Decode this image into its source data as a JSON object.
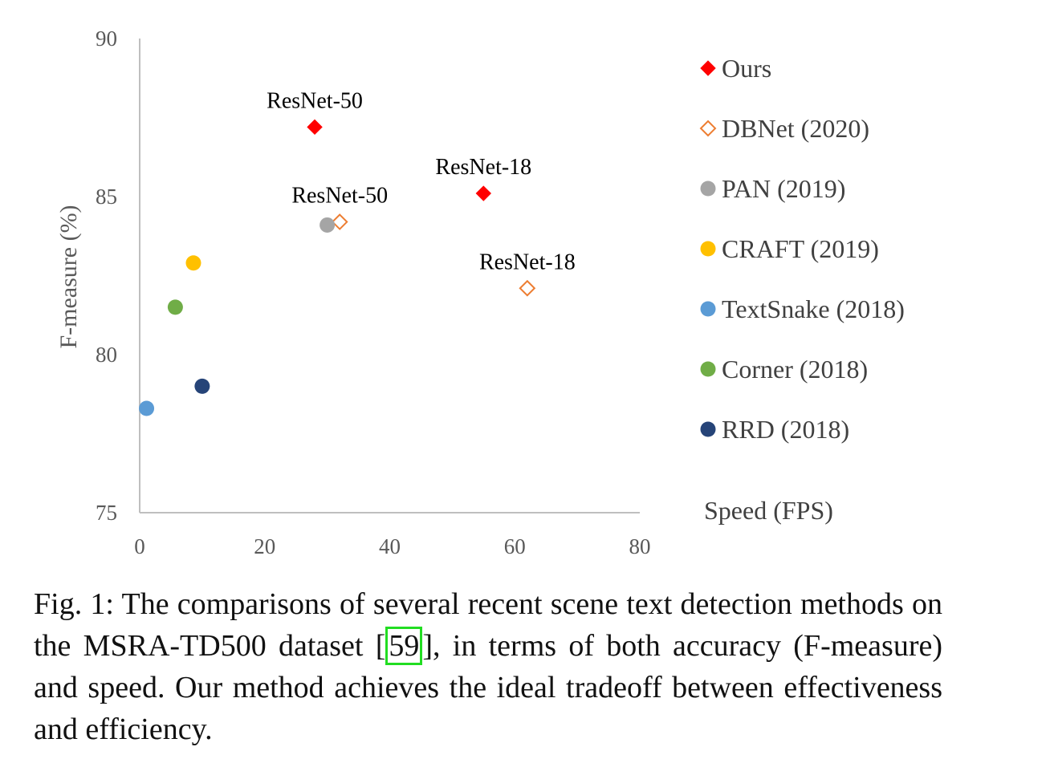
{
  "chart_data": {
    "type": "scatter",
    "xlabel": "Speed (FPS)",
    "ylabel": "F-measure (%)",
    "xlim": [
      0,
      80
    ],
    "ylim": [
      75,
      90
    ],
    "xticks": [
      "0",
      "20",
      "40",
      "60",
      "80"
    ],
    "yticks": [
      "75",
      "80",
      "85",
      "90"
    ],
    "grid": false,
    "legend_position": "right",
    "series": [
      {
        "name": "Ours",
        "marker": "diamond",
        "filled": true,
        "color": "#ff0000",
        "points": [
          {
            "x": 28,
            "y": 87.2,
            "label": "ResNet-50"
          },
          {
            "x": 55,
            "y": 85.1,
            "label": "ResNet-18"
          }
        ]
      },
      {
        "name": "DBNet (2020)",
        "marker": "diamond",
        "filled": false,
        "color": "#ed7d31",
        "points": [
          {
            "x": 32,
            "y": 84.2,
            "label": "ResNet-50"
          },
          {
            "x": 62,
            "y": 82.1,
            "label": "ResNet-18"
          }
        ]
      },
      {
        "name": "PAN (2019)",
        "marker": "circle",
        "filled": true,
        "color": "#a5a5a5",
        "points": [
          {
            "x": 30,
            "y": 84.1
          }
        ]
      },
      {
        "name": "CRAFT (2019)",
        "marker": "circle",
        "filled": true,
        "color": "#ffc000",
        "points": [
          {
            "x": 8.6,
            "y": 82.9
          }
        ]
      },
      {
        "name": "TextSnake (2018)",
        "marker": "circle",
        "filled": true,
        "color": "#5b9bd5",
        "points": [
          {
            "x": 1.1,
            "y": 78.3
          }
        ]
      },
      {
        "name": "Corner (2018)",
        "marker": "circle",
        "filled": true,
        "color": "#70ad47",
        "points": [
          {
            "x": 5.7,
            "y": 81.5
          }
        ]
      },
      {
        "name": "RRD (2018)",
        "marker": "circle",
        "filled": true,
        "color": "#264478",
        "points": [
          {
            "x": 10,
            "y": 79
          }
        ]
      }
    ]
  },
  "caption": {
    "text_before": "Fig. 1: The comparisons of several recent scene text detection methods on the MSRA-TD500 dataset [",
    "citation": "59",
    "text_after": "], in terms of both accuracy (F-measure) and speed. Our method achieves the ideal tradeoff between effectiveness and efficiency."
  }
}
